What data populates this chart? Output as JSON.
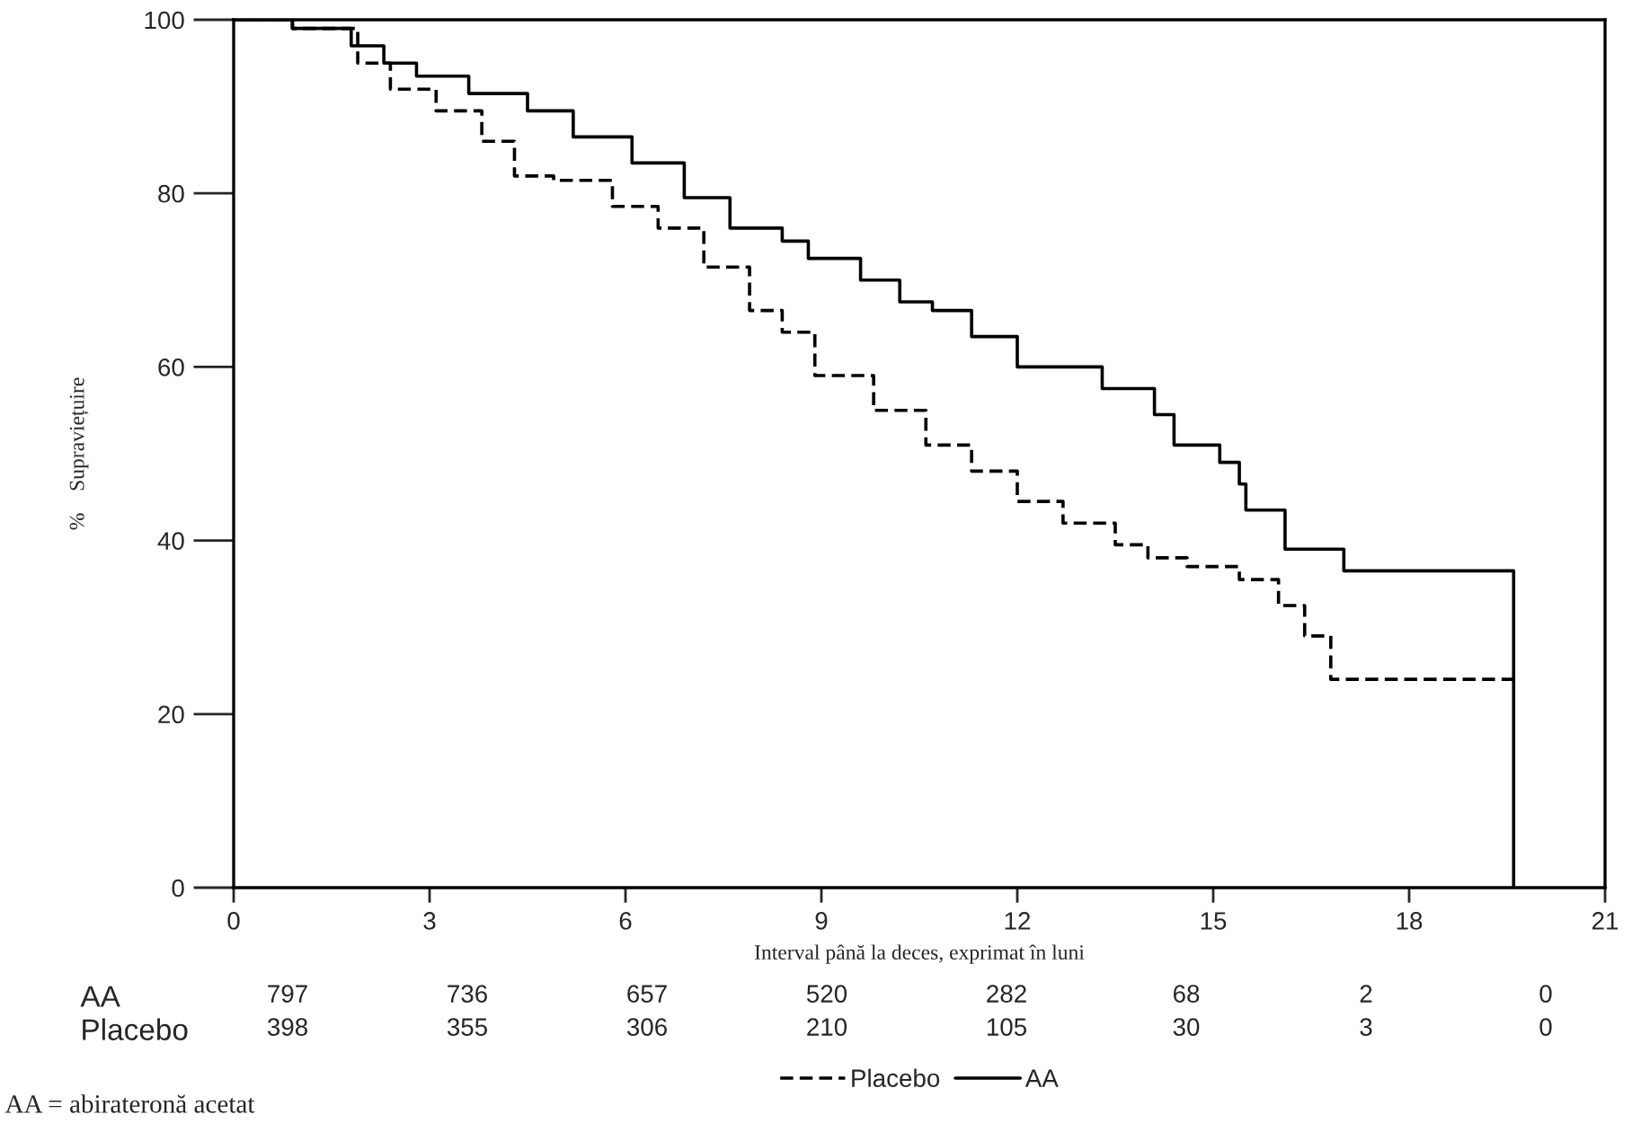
{
  "chart_data": [
    {
      "type": "step",
      "ylabel": "%    Supraviețuire",
      "xlabel": "Interval până la deces, exprimat în luni",
      "xlim": [
        0,
        21
      ],
      "xticks": [
        0,
        3,
        6,
        9,
        12,
        15,
        18,
        21
      ],
      "ylim": [
        0,
        100
      ],
      "yticks": [
        0,
        20,
        40,
        60,
        80,
        100
      ],
      "grid": false,
      "legend": "bottom",
      "series": [
        {
          "name": "Placebo",
          "color": "#000000",
          "line_style": "dashed",
          "x": [
            0,
            0.9,
            1.9,
            2.4,
            3.1,
            3.8,
            4.3,
            4.9,
            5.8,
            6.5,
            7.2,
            7.9,
            8.4,
            8.9,
            9.8,
            10.6,
            11.3,
            12.0,
            12.7,
            13.5,
            14.0,
            14.6,
            15.4,
            16.0,
            16.4,
            16.8,
            19.7
          ],
          "values": [
            100,
            99,
            95,
            92,
            89.5,
            86,
            82,
            81.5,
            78.5,
            76,
            71.5,
            66.5,
            64,
            59,
            55,
            51,
            48,
            44.5,
            42,
            39.5,
            38,
            37,
            35.5,
            32.5,
            29,
            24,
            24
          ]
        },
        {
          "name": "AA",
          "color": "#000000",
          "line_style": "solid",
          "x": [
            0,
            0.9,
            1.8,
            2.3,
            2.8,
            3.6,
            4.5,
            5.2,
            6.1,
            6.9,
            7.6,
            8.4,
            8.8,
            9.6,
            10.2,
            10.7,
            11.3,
            12.0,
            13.3,
            14.1,
            14.4,
            15.1,
            15.4,
            15.5,
            16.1,
            17.0,
            19.6
          ],
          "values": [
            100,
            99,
            97,
            95,
            93.5,
            91.5,
            89.5,
            86.5,
            83.5,
            79.5,
            76,
            74.5,
            72.5,
            70,
            67.5,
            66.5,
            63.5,
            60,
            57.5,
            54.5,
            51,
            49,
            46.5,
            43.5,
            39,
            36.5,
            0
          ]
        }
      ]
    },
    {
      "type": "heatmap",
      "categories": [
        null,
        null,
        null,
        null,
        null,
        null,
        null,
        null
      ],
      "data_labels": true,
      "y_categories": [
        "AA",
        "Placebo"
      ],
      "color": "#ffffff",
      "cells": [
        [
          797,
          736,
          657,
          520,
          282,
          68,
          2,
          0
        ],
        [
          398,
          355,
          306,
          210,
          105,
          30,
          3,
          0
        ]
      ],
      "annotations": [
        "AA = abirateronă acetat"
      ]
    }
  ]
}
